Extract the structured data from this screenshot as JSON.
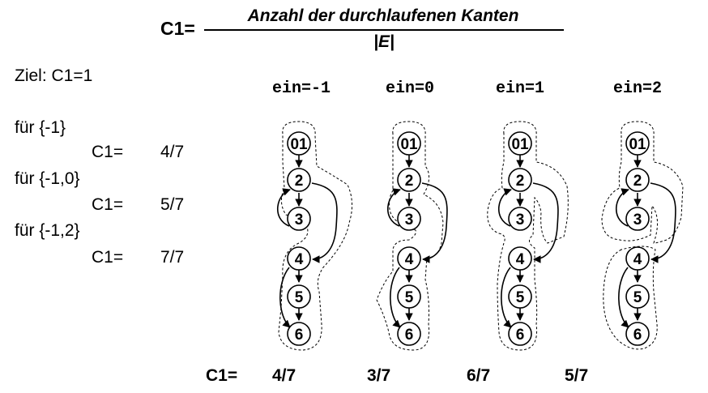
{
  "formula": {
    "label": "C1=",
    "numerator": "Anzahl der durchlaufenen Kanten",
    "denominator": "|E|"
  },
  "goal": "Ziel: C1=1",
  "cases": [
    {
      "set": "für {-1}",
      "c1_label": "C1=",
      "value": "4/7"
    },
    {
      "set": "für {-1,0}",
      "c1_label": "C1=",
      "value": "5/7"
    },
    {
      "set": "für {-1,2}",
      "c1_label": "C1=",
      "value": "7/7"
    }
  ],
  "graphs": [
    {
      "title": "ein=-1",
      "result": "4/7"
    },
    {
      "title": "ein=0",
      "result": "3/7"
    },
    {
      "title": "ein=1",
      "result": "6/7"
    },
    {
      "title": "ein=2",
      "result": "5/7"
    }
  ],
  "bottom_label": "C1=",
  "node_labels": [
    "01",
    "2",
    "3",
    "4",
    "5",
    "6"
  ]
}
